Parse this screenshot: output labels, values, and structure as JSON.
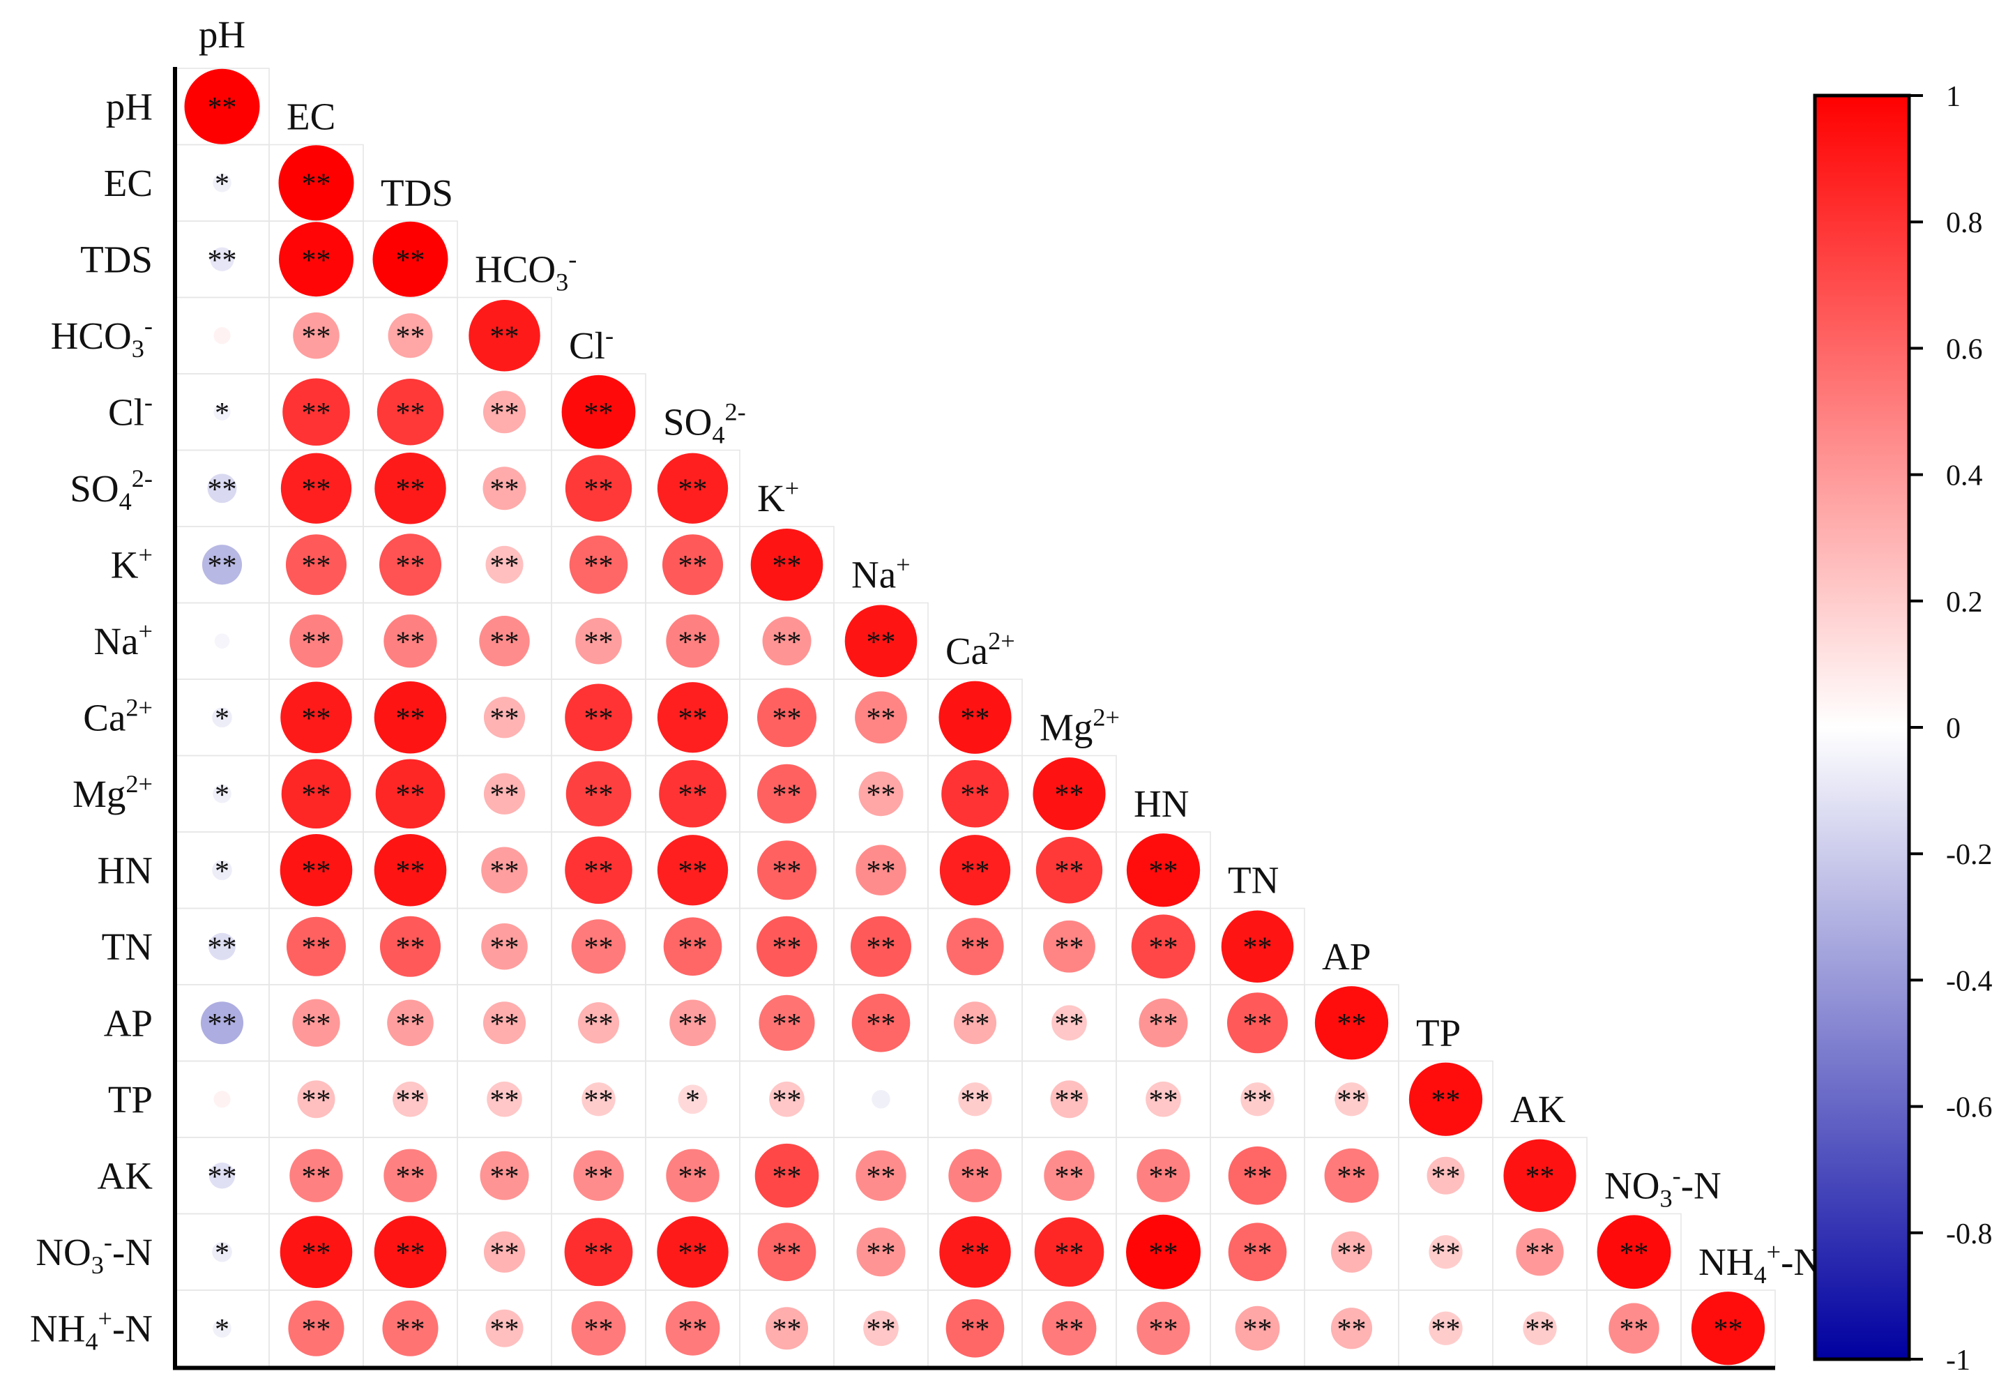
{
  "chart_data": {
    "type": "heatmap",
    "subtype": "lower-triangle correlation matrix with circles",
    "variables": [
      {
        "base": "pH",
        "sub": "",
        "sup": "",
        "tail": ""
      },
      {
        "base": "EC",
        "sub": "",
        "sup": "",
        "tail": ""
      },
      {
        "base": "TDS",
        "sub": "",
        "sup": "",
        "tail": ""
      },
      {
        "base": "HCO",
        "sub": "3",
        "sup": "-",
        "tail": ""
      },
      {
        "base": "Cl",
        "sub": "",
        "sup": "-",
        "tail": ""
      },
      {
        "base": "SO",
        "sub": "4",
        "sup": "2-",
        "tail": ""
      },
      {
        "base": "K",
        "sub": "",
        "sup": "+",
        "tail": ""
      },
      {
        "base": "Na",
        "sub": "",
        "sup": "+",
        "tail": ""
      },
      {
        "base": "Ca",
        "sub": "",
        "sup": "2+",
        "tail": ""
      },
      {
        "base": "Mg",
        "sub": "",
        "sup": "2+",
        "tail": ""
      },
      {
        "base": "HN",
        "sub": "",
        "sup": "",
        "tail": ""
      },
      {
        "base": "TN",
        "sub": "",
        "sup": "",
        "tail": ""
      },
      {
        "base": "AP",
        "sub": "",
        "sup": "",
        "tail": ""
      },
      {
        "base": "TP",
        "sub": "",
        "sup": "",
        "tail": ""
      },
      {
        "base": "AK",
        "sub": "",
        "sup": "",
        "tail": ""
      },
      {
        "base": "NO",
        "sub": "3",
        "sup": "-",
        "tail": "-N"
      },
      {
        "base": "NH",
        "sub": "4",
        "sup": "+",
        "tail": "-N"
      }
    ],
    "correlations": [
      [
        1.0
      ],
      [
        -0.06,
        1.0
      ],
      [
        -0.1,
        0.98,
        1.0
      ],
      [
        0.05,
        0.38,
        0.35,
        0.9
      ],
      [
        -0.05,
        0.8,
        0.78,
        0.32,
        0.96
      ],
      [
        -0.15,
        0.88,
        0.9,
        0.33,
        0.78,
        0.88
      ],
      [
        -0.28,
        0.65,
        0.68,
        0.25,
        0.6,
        0.65,
        0.92
      ],
      [
        -0.04,
        0.5,
        0.5,
        0.45,
        0.38,
        0.5,
        0.42,
        0.92
      ],
      [
        -0.07,
        0.9,
        0.92,
        0.3,
        0.8,
        0.88,
        0.62,
        0.48,
        0.93
      ],
      [
        -0.06,
        0.85,
        0.85,
        0.3,
        0.75,
        0.8,
        0.62,
        0.35,
        0.8,
        0.93
      ],
      [
        -0.07,
        0.92,
        0.92,
        0.38,
        0.8,
        0.88,
        0.62,
        0.45,
        0.88,
        0.78,
        0.95
      ],
      [
        -0.13,
        0.62,
        0.65,
        0.38,
        0.52,
        0.6,
        0.65,
        0.65,
        0.58,
        0.48,
        0.72,
        0.92
      ],
      [
        -0.32,
        0.4,
        0.38,
        0.32,
        0.3,
        0.38,
        0.55,
        0.6,
        0.32,
        0.22,
        0.42,
        0.65,
        0.95
      ],
      [
        0.05,
        0.25,
        0.22,
        0.22,
        0.2,
        0.15,
        0.22,
        -0.06,
        0.2,
        0.25,
        0.22,
        0.2,
        0.2,
        0.95
      ],
      [
        -0.12,
        0.5,
        0.5,
        0.42,
        0.45,
        0.5,
        0.72,
        0.45,
        0.5,
        0.45,
        0.5,
        0.6,
        0.52,
        0.25,
        0.93
      ],
      [
        -0.07,
        0.92,
        0.92,
        0.3,
        0.82,
        0.9,
        0.6,
        0.42,
        0.9,
        0.85,
        0.98,
        0.6,
        0.3,
        0.2,
        0.4,
        0.96
      ],
      [
        -0.06,
        0.55,
        0.55,
        0.25,
        0.52,
        0.52,
        0.32,
        0.22,
        0.6,
        0.52,
        0.5,
        0.35,
        0.3,
        0.2,
        0.2,
        0.45,
        0.95
      ]
    ],
    "significance": [
      [
        "**"
      ],
      [
        "*",
        "**"
      ],
      [
        "**",
        "**",
        "**"
      ],
      [
        "",
        "**",
        "**",
        "**"
      ],
      [
        "*",
        "**",
        "**",
        "**",
        "**"
      ],
      [
        "**",
        "**",
        "**",
        "**",
        "**",
        "**"
      ],
      [
        "**",
        "**",
        "**",
        "**",
        "**",
        "**",
        "**"
      ],
      [
        "",
        "**",
        "**",
        "**",
        "**",
        "**",
        "**",
        "**"
      ],
      [
        "*",
        "**",
        "**",
        "**",
        "**",
        "**",
        "**",
        "**",
        "**"
      ],
      [
        "*",
        "**",
        "**",
        "**",
        "**",
        "**",
        "**",
        "**",
        "**",
        "**"
      ],
      [
        "*",
        "**",
        "**",
        "**",
        "**",
        "**",
        "**",
        "**",
        "**",
        "**",
        "**"
      ],
      [
        "**",
        "**",
        "**",
        "**",
        "**",
        "**",
        "**",
        "**",
        "**",
        "**",
        "**",
        "**"
      ],
      [
        "**",
        "**",
        "**",
        "**",
        "**",
        "**",
        "**",
        "**",
        "**",
        "**",
        "**",
        "**",
        "**"
      ],
      [
        "",
        "**",
        "**",
        "**",
        "**",
        "*",
        "**",
        "",
        "**",
        "**",
        "**",
        "**",
        "**",
        "**"
      ],
      [
        "**",
        "**",
        "**",
        "**",
        "**",
        "**",
        "**",
        "**",
        "**",
        "**",
        "**",
        "**",
        "**",
        "**",
        "**"
      ],
      [
        "*",
        "**",
        "**",
        "**",
        "**",
        "**",
        "**",
        "**",
        "**",
        "**",
        "**",
        "**",
        "**",
        "**",
        "**",
        "**"
      ],
      [
        "*",
        "**",
        "**",
        "**",
        "**",
        "**",
        "**",
        "**",
        "**",
        "**",
        "**",
        "**",
        "**",
        "**",
        "**",
        "**",
        "**"
      ]
    ],
    "colorbar": {
      "range": [
        -1,
        1
      ],
      "ticks": [
        "1",
        "0.8",
        "0.6",
        "0.4",
        "0.2",
        "0",
        "-0.2",
        "-0.4",
        "-0.6",
        "-0.8",
        "-1"
      ],
      "colors": {
        "negative": "#0000a0",
        "zero": "#ffffff",
        "positive": "#ff0000"
      }
    },
    "grid": true
  }
}
